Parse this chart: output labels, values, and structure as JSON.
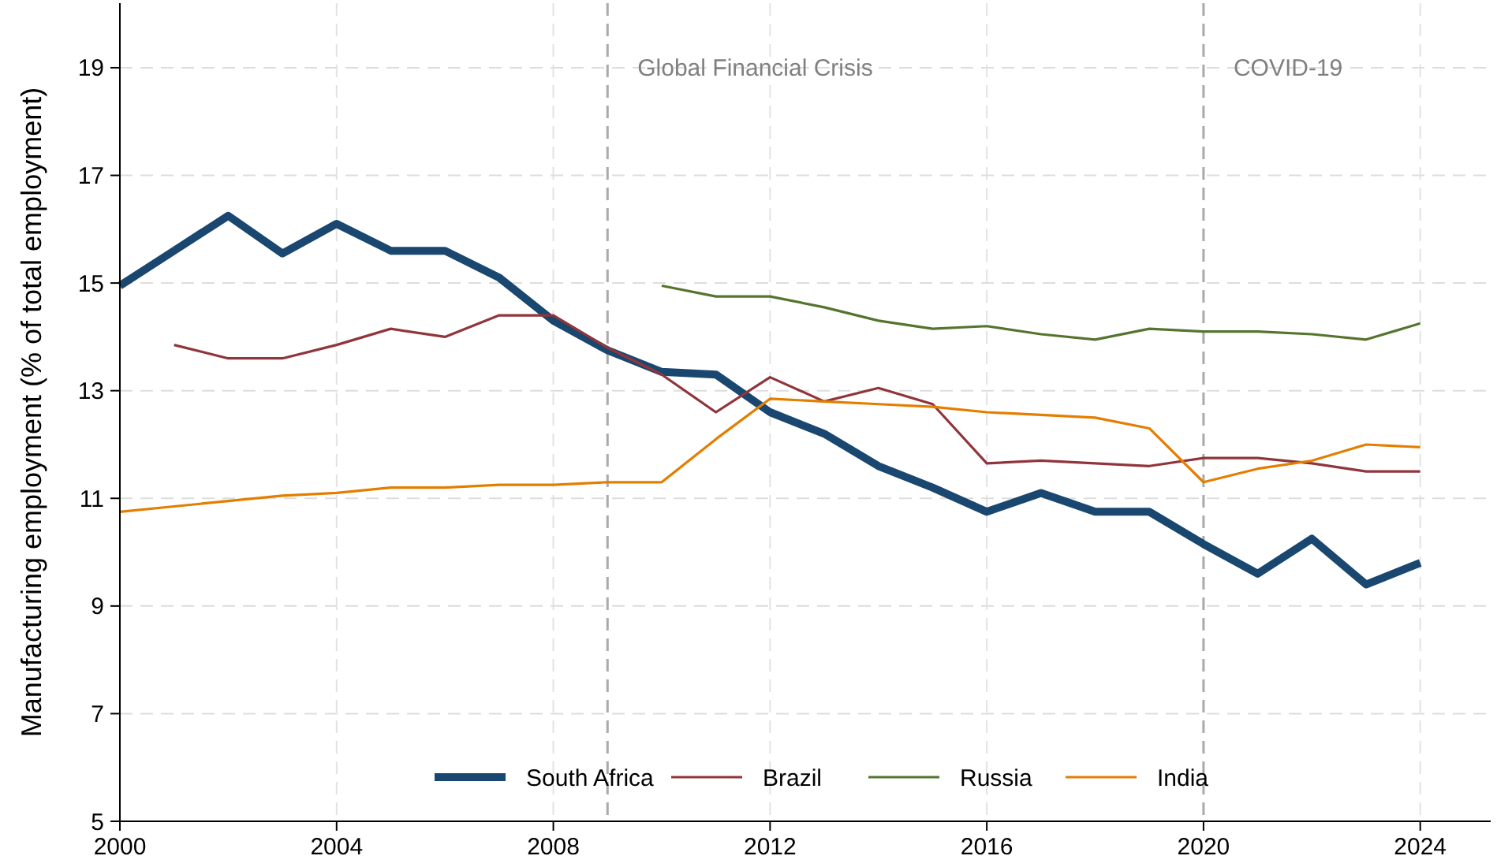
{
  "chart_data": {
    "type": "line",
    "ylabel": "Manufacturing employment (% of total employment)",
    "x": [
      2000,
      2001,
      2002,
      2003,
      2004,
      2005,
      2006,
      2007,
      2008,
      2009,
      2010,
      2011,
      2012,
      2013,
      2014,
      2015,
      2016,
      2017,
      2018,
      2019,
      2020,
      2021,
      2022,
      2023,
      2024
    ],
    "series": [
      {
        "name": "South Africa",
        "color": "#1a476f",
        "values": [
          14.95,
          15.6,
          16.25,
          15.55,
          16.1,
          15.6,
          15.6,
          15.1,
          14.3,
          13.75,
          13.35,
          13.3,
          12.6,
          12.2,
          11.6,
          11.2,
          10.75,
          11.1,
          10.75,
          10.75,
          10.15,
          9.6,
          10.25,
          9.4,
          9.8
        ]
      },
      {
        "name": "Brazil",
        "color": "#90353b",
        "values": [
          null,
          13.85,
          13.6,
          13.6,
          13.85,
          14.15,
          14.0,
          14.4,
          14.4,
          13.8,
          13.3,
          12.6,
          13.25,
          12.8,
          13.05,
          12.75,
          11.65,
          11.7,
          11.65,
          11.6,
          11.75,
          11.75,
          11.65,
          11.5,
          11.5
        ]
      },
      {
        "name": "Russia",
        "color": "#55752f",
        "values": [
          null,
          null,
          null,
          null,
          null,
          null,
          null,
          null,
          null,
          null,
          14.95,
          14.75,
          14.75,
          14.55,
          14.3,
          14.15,
          14.2,
          14.05,
          13.95,
          14.15,
          14.1,
          14.1,
          14.05,
          13.95,
          14.25
        ]
      },
      {
        "name": "India",
        "color": "#e37e00",
        "values": [
          10.75,
          10.85,
          10.95,
          11.05,
          11.1,
          11.2,
          11.2,
          11.25,
          11.25,
          11.3,
          11.3,
          12.1,
          12.85,
          12.8,
          12.75,
          12.7,
          12.6,
          12.55,
          12.5,
          12.3,
          11.3,
          11.55,
          11.7,
          12.0,
          11.95
        ]
      }
    ],
    "xlim": [
      2000,
      2025.3
    ],
    "xticks": [
      2000,
      2004,
      2008,
      2012,
      2016,
      2020,
      2024
    ],
    "ylim": [
      5,
      20.2
    ],
    "yticks": [
      5,
      7,
      9,
      11,
      13,
      15,
      17,
      19
    ],
    "ref_lines": [
      {
        "axis": "x",
        "value": 2009,
        "label": "Global Financial Crisis",
        "color": "#aaaaaa",
        "line_style": "dashed"
      },
      {
        "axis": "x",
        "value": 2020,
        "label": "COVID-19",
        "color": "#aaaaaa",
        "line_style": "dashed"
      }
    ],
    "grid": true,
    "legend": "bottom",
    "marker": "none",
    "line_style": "solid"
  }
}
